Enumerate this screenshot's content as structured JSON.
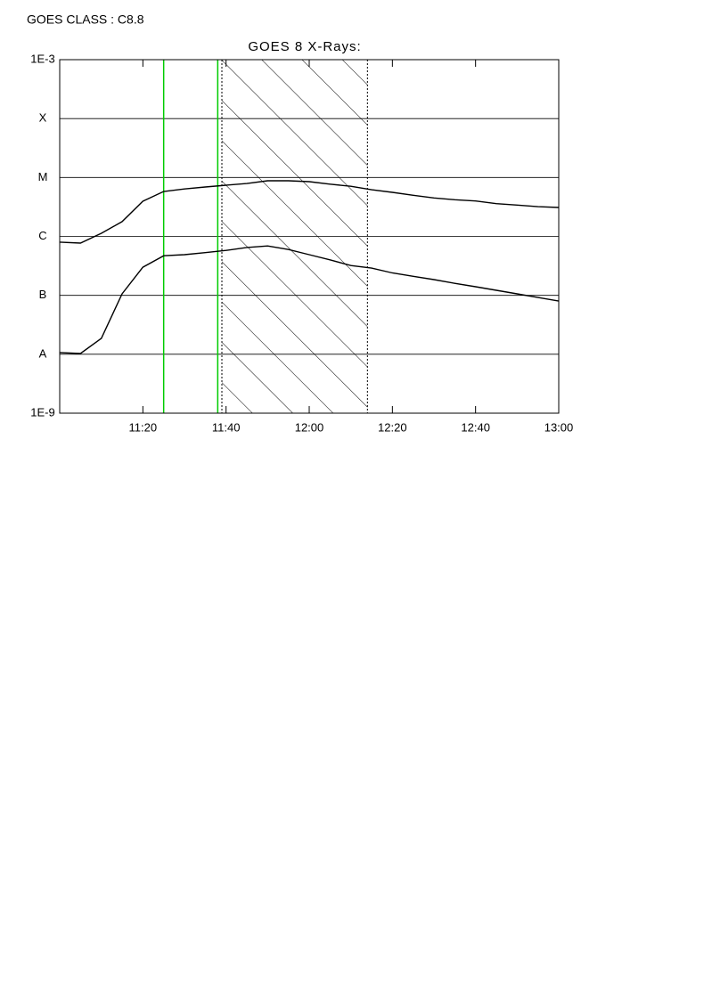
{
  "chart_data": {
    "type": "line",
    "annotation": "GOES CLASS : C8.8",
    "title": "GOES 8 X-Rays:",
    "x": [
      "11:00",
      "11:05",
      "11:10",
      "11:15",
      "11:20",
      "11:25",
      "11:30",
      "11:35",
      "11:40",
      "11:45",
      "11:50",
      "11:55",
      "12:00",
      "12:05",
      "12:10",
      "12:15",
      "12:20",
      "12:25",
      "12:30",
      "12:35",
      "12:40",
      "12:45",
      "12:50",
      "12:55",
      "13:00"
    ],
    "series": [
      {
        "color": "#000000",
        "values": [
          8e-07,
          7.7e-07,
          1.13e-06,
          1.78e-06,
          3.96e-06,
          5.8e-06,
          6.4e-06,
          6.9e-06,
          7.4e-06,
          7.9e-06,
          8.8e-06,
          8.8e-06,
          8.5e-06,
          7.7e-06,
          7.1e-06,
          6.2e-06,
          5.6e-06,
          5e-06,
          4.5e-06,
          4.2e-06,
          4e-06,
          3.6e-06,
          3.4e-06,
          3.2e-06,
          3.1e-06
        ]
      },
      {
        "color": "#000000",
        "values": [
          1.07e-08,
          1.03e-08,
          1.86e-08,
          1.06e-07,
          3e-07,
          4.7e-07,
          4.9e-07,
          5.3e-07,
          5.8e-07,
          6.5e-07,
          6.9e-07,
          6e-07,
          4.9e-07,
          4e-07,
          3.2e-07,
          2.9e-07,
          2.4e-07,
          2.1e-07,
          1.85e-07,
          1.6e-07,
          1.4e-07,
          1.22e-07,
          1.06e-07,
          9.2e-08,
          8e-08
        ]
      }
    ],
    "xlim": [
      "11:00",
      "13:00"
    ],
    "xticks": [
      "11:20",
      "11:40",
      "12:00",
      "12:20",
      "12:40",
      "13:00"
    ],
    "ylim": [
      1e-09,
      0.001
    ],
    "yscale": "log",
    "yticks": [
      {
        "value": 1e-09,
        "label": "1E-9"
      },
      {
        "value": 1e-08,
        "label": "A"
      },
      {
        "value": 1e-07,
        "label": "B"
      },
      {
        "value": 1e-06,
        "label": "C"
      },
      {
        "value": 1e-05,
        "label": "M"
      },
      {
        "value": 0.0001,
        "label": "X"
      },
      {
        "value": 0.001,
        "label": "1E-3"
      }
    ],
    "grid": true,
    "vlines": [
      {
        "x": "11:25",
        "color": "#00cc00"
      },
      {
        "x": "11:38",
        "color": "#00cc00"
      }
    ],
    "shaded": {
      "from": "11:39",
      "to": "12:14"
    }
  }
}
